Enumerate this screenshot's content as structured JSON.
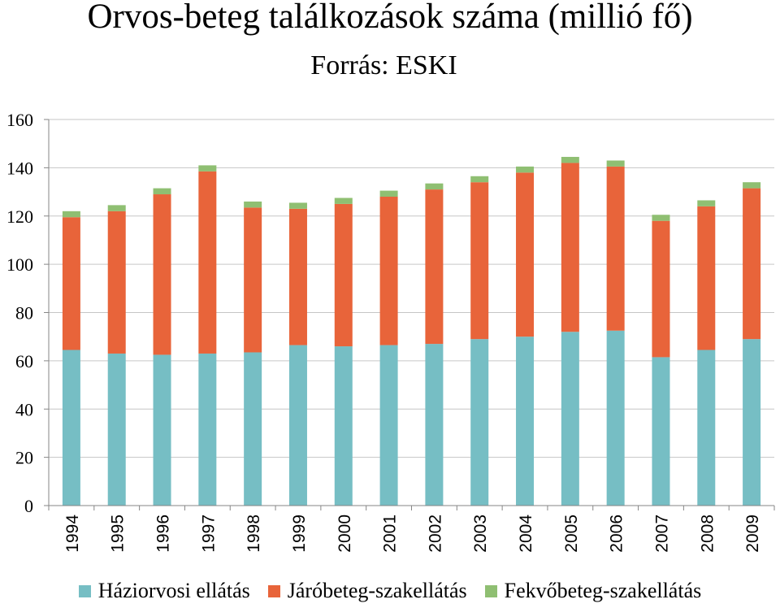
{
  "chart_data": {
    "type": "bar",
    "stacked": true,
    "title": "Orvos-beteg találkozások száma (millió fő)",
    "subtitle": "Forrás: ESKI",
    "ylim": [
      0,
      160
    ],
    "yticks": [
      0,
      20,
      40,
      60,
      80,
      100,
      120,
      140,
      160
    ],
    "grid": "horizontal",
    "legend_position": "bottom",
    "categories": [
      "1994",
      "1995",
      "1996",
      "1997",
      "1998",
      "1999",
      "2000",
      "2001",
      "2002",
      "2003",
      "2004",
      "2005",
      "2006",
      "2007",
      "2008",
      "2009"
    ],
    "series": [
      {
        "name": "Háziorvosi ellátás",
        "color": "#76bec4",
        "values": [
          64.5,
          63,
          62.5,
          63,
          63.5,
          66.5,
          66,
          66.5,
          67,
          69,
          70,
          72,
          72.5,
          61.5,
          64.5,
          69
        ]
      },
      {
        "name": "Járóbeteg-szakellátás",
        "color": "#e8643a",
        "values": [
          55,
          59,
          66.5,
          75.5,
          60,
          56.5,
          59,
          61.5,
          64,
          65,
          68,
          70,
          68,
          56.5,
          59.5,
          62.5
        ]
      },
      {
        "name": "Fekvőbeteg-szakellátás",
        "color": "#8fbf72",
        "values": [
          2.5,
          2.5,
          2.5,
          2.5,
          2.5,
          2.5,
          2.5,
          2.5,
          2.5,
          2.5,
          2.5,
          2.5,
          2.5,
          2.5,
          2.5,
          2.5
        ]
      }
    ]
  }
}
